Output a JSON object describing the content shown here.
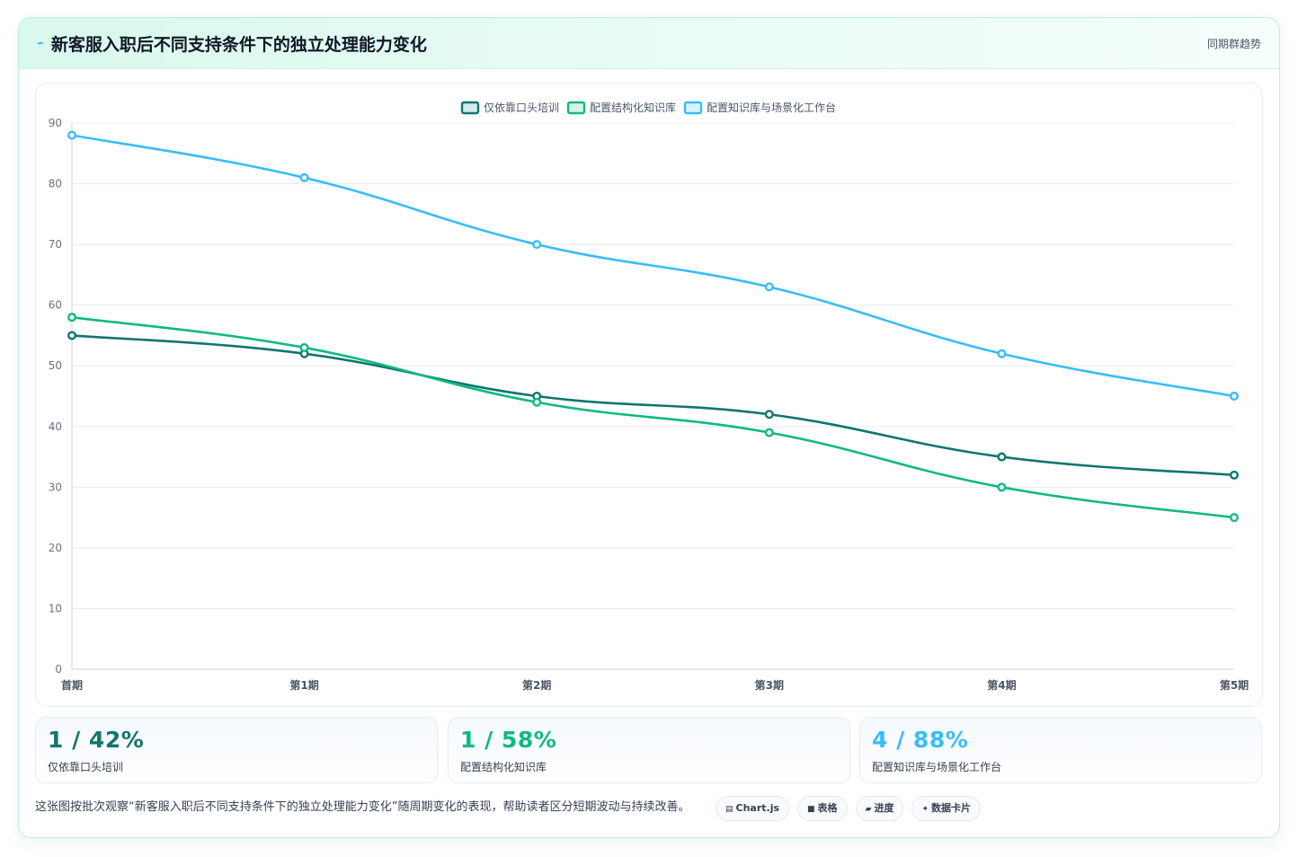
{
  "header": {
    "title": "新客服入职后不同支持条件下的独立处理能力变化",
    "right_label": "同期群趋势",
    "icon": "lightning-icon"
  },
  "chart_data": {
    "type": "line",
    "categories": [
      "首期",
      "第1期",
      "第2期",
      "第3期",
      "第4期",
      "第5期"
    ],
    "series": [
      {
        "name": "仅依靠口头培训",
        "values": [
          55,
          52,
          45,
          42,
          35,
          32
        ],
        "color": "#0f766e"
      },
      {
        "name": "配置结构化知识库",
        "values": [
          58,
          53,
          44,
          39,
          30,
          25
        ],
        "color": "#10b981"
      },
      {
        "name": "配置知识库与场景化工作台",
        "values": [
          88,
          81,
          70,
          63,
          52,
          45
        ],
        "color": "#38bdf8"
      }
    ],
    "ylim": [
      0,
      90
    ],
    "yticks": [
      0,
      10,
      20,
      30,
      40,
      50,
      60,
      70,
      80,
      90
    ],
    "grid": true,
    "legend_position": "top-center",
    "xlabel": "",
    "ylabel": ""
  },
  "stats": [
    {
      "value": "1 / 42%",
      "label": "仅依靠口头培训",
      "color": "#0f766e"
    },
    {
      "value": "1 / 58%",
      "label": "配置结构化知识库",
      "color": "#10b981"
    },
    {
      "value": "4 / 88%",
      "label": "配置知识库与场景化工作台",
      "color": "#38bdf8"
    }
  ],
  "footer": {
    "description": "这张图按批次观察“新客服入职后不同支持条件下的独立处理能力变化”随周期变化的表现，帮助读者区分短期波动与持续改善。",
    "tags": [
      {
        "icon": "▤",
        "label": "Chart.js"
      },
      {
        "icon": "■",
        "label": "表格"
      },
      {
        "icon": "▰",
        "label": "进度"
      },
      {
        "icon": "✦",
        "label": "数据卡片"
      }
    ]
  }
}
